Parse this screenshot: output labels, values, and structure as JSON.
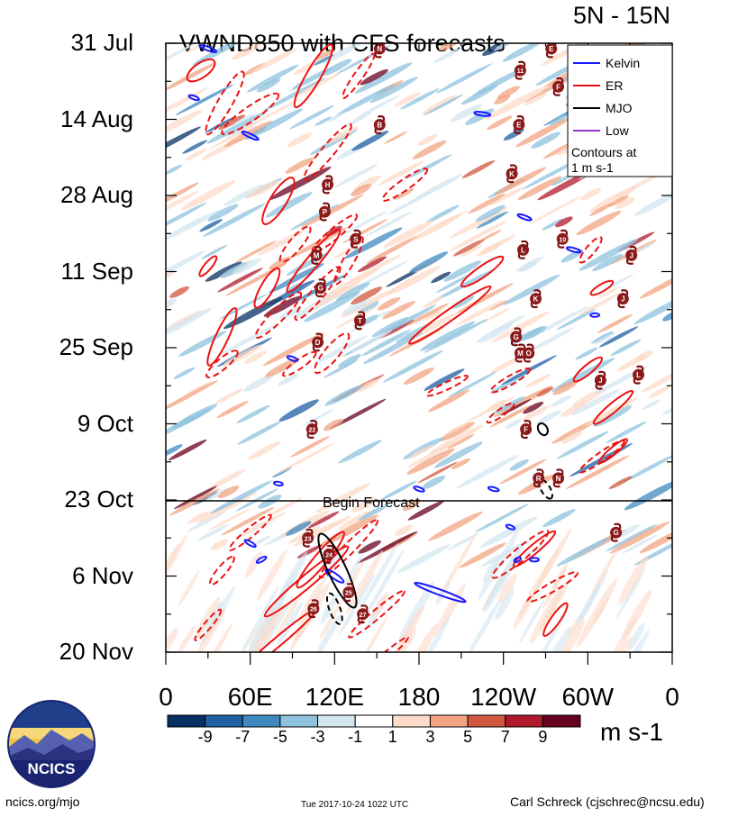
{
  "chart_data": {
    "type": "heatmap",
    "title": "VWND850 with CFS forecasts",
    "region": "5N - 15N",
    "y_ticks": [
      "31 Jul",
      "14 Aug",
      "28 Aug",
      "11 Sep",
      "25 Sep",
      "9 Oct",
      "23 Oct",
      "6 Nov",
      "20 Nov"
    ],
    "x_ticks": [
      "0",
      "60E",
      "120E",
      "180",
      "120W",
      "60W",
      "0"
    ],
    "forecast_label": "Begin Forecast",
    "forecast_start": "23 Oct",
    "legend": {
      "items": [
        {
          "label": "Kelvin",
          "color": "#1a1aff"
        },
        {
          "label": "ER",
          "color": "#ee1111"
        },
        {
          "label": "MJO",
          "color": "#000000"
        },
        {
          "label": "Low",
          "color": "#9933cc"
        }
      ],
      "note_line1": "Contours at",
      "note_line2": "1 m s-1"
    },
    "colorbar": {
      "ticks": [
        "-9",
        "-7",
        "-5",
        "-3",
        "-1",
        "1",
        "3",
        "5",
        "7",
        "9"
      ],
      "colors": [
        "#053061",
        "#1f5fa3",
        "#3f89c0",
        "#8ec1dd",
        "#d3e6f0",
        "#ffffff",
        "#fcdbc8",
        "#f2a482",
        "#d1573f",
        "#b0182b",
        "#67001f"
      ],
      "units": "m s-1"
    },
    "storms": [
      {
        "label": "N",
        "lon": 152,
        "day": 1
      },
      {
        "label": "B",
        "lon": 152,
        "day": 15
      },
      {
        "label": "H",
        "lon": 115,
        "day": 26
      },
      {
        "label": "P",
        "lon": 113,
        "day": 31
      },
      {
        "label": "S",
        "lon": 135,
        "day": 36
      },
      {
        "label": "M",
        "lon": 107,
        "day": 39
      },
      {
        "label": "G",
        "lon": 110,
        "day": 45
      },
      {
        "label": "T",
        "lon": 138,
        "day": 51
      },
      {
        "label": "D",
        "lon": 108,
        "day": 55
      },
      {
        "label": "22",
        "lon": 104,
        "day": 71
      },
      {
        "label": "23",
        "lon": 101,
        "day": 91
      },
      {
        "label": "24",
        "lon": 116,
        "day": 94
      },
      {
        "label": "25",
        "lon": 130,
        "day": 101
      },
      {
        "label": "26",
        "lon": 105,
        "day": 104
      },
      {
        "label": "27",
        "lon": 140,
        "day": 105
      },
      {
        "label": "E",
        "lon": 274,
        "day": 1
      },
      {
        "label": "11",
        "lon": 252,
        "day": 5
      },
      {
        "label": "F",
        "lon": 279,
        "day": 8
      },
      {
        "label": "E",
        "lon": 251,
        "day": 15
      },
      {
        "label": "K",
        "lon": 246,
        "day": 24
      },
      {
        "label": "10",
        "lon": 282,
        "day": 36
      },
      {
        "label": "L",
        "lon": 254,
        "day": 38
      },
      {
        "label": "K",
        "lon": 263,
        "day": 47
      },
      {
        "label": "G",
        "lon": 249,
        "day": 54
      },
      {
        "label": "M",
        "lon": 252,
        "day": 57
      },
      {
        "label": "O",
        "lon": 258,
        "day": 57
      },
      {
        "label": "F",
        "lon": 256,
        "day": 71
      },
      {
        "label": "R",
        "lon": 265,
        "day": 80
      },
      {
        "label": "N",
        "lon": 279,
        "day": 80
      },
      {
        "label": "J",
        "lon": 331,
        "day": 39
      },
      {
        "label": "J",
        "lon": 325,
        "day": 47
      },
      {
        "label": "J",
        "lon": 309,
        "day": 62
      },
      {
        "label": "L",
        "lon": 336,
        "day": 61
      },
      {
        "label": "G",
        "lon": 320,
        "day": 90
      }
    ]
  },
  "footer": {
    "logo_text": "NCICS",
    "site": "ncics.org/mjo",
    "timestamp": "Tue 2017-10-24 1022 UTC",
    "author": "Carl Schreck (cjschrec@ncsu.edu)"
  }
}
